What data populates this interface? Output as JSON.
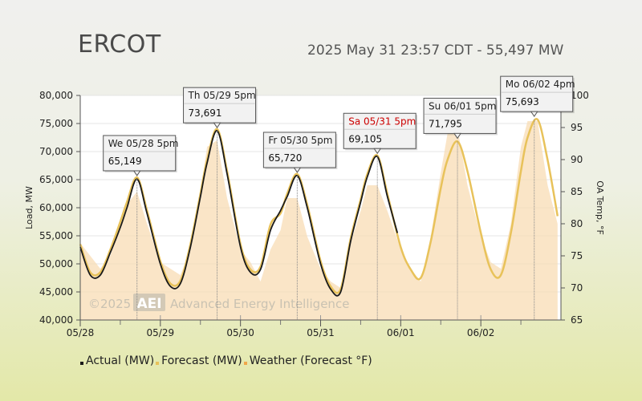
{
  "header": {
    "title": "ERCOT",
    "subtitle": "2025 May 31 23:57 CDT - 55,497 MW"
  },
  "watermark": {
    "copyright": "©2025",
    "brand": "AEI",
    "name": "Advanced Energy Intelligence"
  },
  "colors": {
    "actual": "#1a1a1a",
    "forecast": "#e8c25a",
    "weather": "#f8dcb4",
    "highlight": "#cc0000",
    "callout_fill": "#f2f2f2"
  },
  "legend": [
    {
      "label": "Actual (MW)",
      "color": "#1a1a1a"
    },
    {
      "label": "Forecast (MW)",
      "color": "#e8c25a"
    },
    {
      "label": "Weather (Forecast °F)",
      "color": "#f0a64a"
    }
  ],
  "chart_data": {
    "type": "line",
    "x_axis": {
      "ticks": [
        "05/28",
        "05/29",
        "05/30",
        "05/31",
        "06/01",
        "06/02"
      ],
      "start": "05/28 00:00",
      "end": "06/02 23:00"
    },
    "y_axis_left": {
      "label": "Load, MW",
      "min": 40000,
      "max": 80000,
      "ticks": [
        "40,000",
        "45,000",
        "50,000",
        "55,000",
        "60,000",
        "65,000",
        "70,000",
        "75,000",
        "80,000"
      ]
    },
    "y_axis_right": {
      "label": "OA Temp, °F",
      "min": 65,
      "max": 100,
      "ticks": [
        "65",
        "70",
        "75",
        "80",
        "85",
        "90",
        "95",
        "100"
      ]
    },
    "series": [
      {
        "name": "Actual (MW)",
        "axis": "left",
        "points": [
          [
            "05/28 00:00",
            53000
          ],
          [
            "05/28 03:00",
            48000
          ],
          [
            "05/28 06:00",
            48000
          ],
          [
            "05/28 09:00",
            52000
          ],
          [
            "05/28 12:00",
            56500
          ],
          [
            "05/28 14:00",
            60000
          ],
          [
            "05/28 17:00",
            65100
          ],
          [
            "05/28 20:00",
            59000
          ],
          [
            "05/29 00:00",
            50000
          ],
          [
            "05/29 03:00",
            46000
          ],
          [
            "05/29 06:00",
            46500
          ],
          [
            "05/29 09:00",
            53000
          ],
          [
            "05/29 12:00",
            62000
          ],
          [
            "05/29 14:00",
            68000
          ],
          [
            "05/29 17:00",
            73700
          ],
          [
            "05/29 20:00",
            66000
          ],
          [
            "05/30 00:00",
            53000
          ],
          [
            "05/30 03:00",
            48500
          ],
          [
            "05/30 06:00",
            49000
          ],
          [
            "05/30 09:00",
            56000
          ],
          [
            "05/30 12:00",
            59500
          ],
          [
            "05/30 14:00",
            62000
          ],
          [
            "05/30 17:00",
            65700
          ],
          [
            "05/30 20:00",
            60000
          ],
          [
            "05/31 00:00",
            50000
          ],
          [
            "05/31 03:00",
            45500
          ],
          [
            "05/31 06:00",
            45000
          ],
          [
            "05/31 09:00",
            54000
          ],
          [
            "05/31 12:00",
            61000
          ],
          [
            "05/31 14:00",
            65500
          ],
          [
            "05/31 17:00",
            69100
          ],
          [
            "05/31 20:00",
            62000
          ],
          [
            "05/31 23:00",
            55500
          ]
        ]
      },
      {
        "name": "Forecast (MW)",
        "axis": "left",
        "points": [
          [
            "05/28 00:00",
            53500
          ],
          [
            "05/28 03:00",
            48500
          ],
          [
            "05/28 06:00",
            48500
          ],
          [
            "05/28 09:00",
            52500
          ],
          [
            "05/28 12:00",
            57500
          ],
          [
            "05/28 14:00",
            61000
          ],
          [
            "05/28 17:00",
            65400
          ],
          [
            "05/28 20:00",
            59500
          ],
          [
            "05/29 00:00",
            50500
          ],
          [
            "05/29 03:00",
            46500
          ],
          [
            "05/29 06:00",
            47000
          ],
          [
            "05/29 09:00",
            53500
          ],
          [
            "05/29 12:00",
            62500
          ],
          [
            "05/29 14:00",
            68500
          ],
          [
            "05/29 17:00",
            74000
          ],
          [
            "05/29 20:00",
            66500
          ],
          [
            "05/30 00:00",
            53500
          ],
          [
            "05/30 03:00",
            49000
          ],
          [
            "05/30 06:00",
            49500
          ],
          [
            "05/30 09:00",
            57000
          ],
          [
            "05/30 12:00",
            59000
          ],
          [
            "05/30 14:00",
            62500
          ],
          [
            "05/30 17:00",
            66000
          ],
          [
            "05/30 20:00",
            60500
          ],
          [
            "05/31 00:00",
            50500
          ],
          [
            "05/31 03:00",
            46000
          ],
          [
            "05/31 06:00",
            45500
          ],
          [
            "05/31 09:00",
            54500
          ],
          [
            "05/31 12:00",
            61500
          ],
          [
            "05/31 14:00",
            66000
          ],
          [
            "05/31 17:00",
            69300
          ],
          [
            "05/31 20:00",
            62500
          ],
          [
            "06/01 00:00",
            53000
          ],
          [
            "06/01 03:00",
            49000
          ],
          [
            "06/01 06:00",
            47500
          ],
          [
            "06/01 09:00",
            54000
          ],
          [
            "06/01 12:00",
            63500
          ],
          [
            "06/01 14:00",
            68500
          ],
          [
            "06/01 17:00",
            71800
          ],
          [
            "06/01 20:00",
            66500
          ],
          [
            "06/02 00:00",
            55500
          ],
          [
            "06/02 03:00",
            49000
          ],
          [
            "06/02 06:00",
            48000
          ],
          [
            "06/02 09:00",
            55500
          ],
          [
            "06/02 12:00",
            66500
          ],
          [
            "06/02 14:00",
            72500
          ],
          [
            "06/02 17:00",
            75700
          ],
          [
            "06/02 20:00",
            68500
          ],
          [
            "06/02 23:00",
            58500
          ]
        ]
      },
      {
        "name": "Weather (Forecast °F)",
        "axis": "right",
        "points": [
          [
            "05/28 00:00",
            77
          ],
          [
            "05/28 03:00",
            75
          ],
          [
            "05/28 06:00",
            73
          ],
          [
            "05/28 09:00",
            75
          ],
          [
            "05/28 12:00",
            80
          ],
          [
            "05/28 14:00",
            83
          ],
          [
            "05/28 17:00",
            85
          ],
          [
            "05/28 20:00",
            80
          ],
          [
            "05/29 00:00",
            74
          ],
          [
            "05/29 03:00",
            73
          ],
          [
            "05/29 06:00",
            72
          ],
          [
            "05/29 09:00",
            76
          ],
          [
            "05/29 12:00",
            85
          ],
          [
            "05/29 14:00",
            92
          ],
          [
            "05/29 17:00",
            93
          ],
          [
            "05/29 20:00",
            84
          ],
          [
            "05/30 00:00",
            76
          ],
          [
            "05/30 03:00",
            74
          ],
          [
            "05/30 06:00",
            71
          ],
          [
            "05/30 09:00",
            76
          ],
          [
            "05/30 12:00",
            79
          ],
          [
            "05/30 14:00",
            84
          ],
          [
            "05/30 17:00",
            84
          ],
          [
            "05/30 20:00",
            78
          ],
          [
            "05/31 00:00",
            73
          ],
          [
            "05/31 03:00",
            71
          ],
          [
            "05/31 06:00",
            70
          ],
          [
            "05/31 09:00",
            77
          ],
          [
            "05/31 12:00",
            82
          ],
          [
            "05/31 14:00",
            86
          ],
          [
            "05/31 17:00",
            86
          ],
          [
            "05/31 20:00",
            82
          ],
          [
            "06/01 00:00",
            76
          ],
          [
            "06/01 03:00",
            73
          ],
          [
            "06/01 06:00",
            71
          ],
          [
            "06/01 09:00",
            78
          ],
          [
            "06/01 12:00",
            88
          ],
          [
            "06/01 14:00",
            94
          ],
          [
            "06/01 17:00",
            95
          ],
          [
            "06/01 20:00",
            86
          ],
          [
            "06/02 00:00",
            78
          ],
          [
            "06/02 03:00",
            74
          ],
          [
            "06/02 06:00",
            73
          ],
          [
            "06/02 09:00",
            80
          ],
          [
            "06/02 12:00",
            92
          ],
          [
            "06/02 14:00",
            96
          ],
          [
            "06/02 17:00",
            96
          ],
          [
            "06/02 20:00",
            86
          ],
          [
            "06/02 23:00",
            80
          ]
        ]
      }
    ],
    "annotations": [
      {
        "day": "We 05/28 5pm",
        "value": "65,149",
        "at": "05/28 17:00",
        "y": 65149,
        "highlight": false
      },
      {
        "day": "Th 05/29 5pm",
        "value": "73,691",
        "at": "05/29 17:00",
        "y": 73691,
        "highlight": false
      },
      {
        "day": "Fr 05/30 5pm",
        "value": "65,720",
        "at": "05/30 17:00",
        "y": 65720,
        "highlight": false
      },
      {
        "day": "Sa 05/31 5pm",
        "value": "69,105",
        "at": "05/31 17:00",
        "y": 69105,
        "highlight": true
      },
      {
        "day": "Su 06/01 5pm",
        "value": "71,795",
        "at": "06/01 17:00",
        "y": 71795,
        "highlight": false
      },
      {
        "day": "Mo 06/02 4pm",
        "value": "75,693",
        "at": "06/02 16:00",
        "y": 75693,
        "highlight": false
      }
    ],
    "grid": "horizontal",
    "legend_position": "bottom-left"
  }
}
